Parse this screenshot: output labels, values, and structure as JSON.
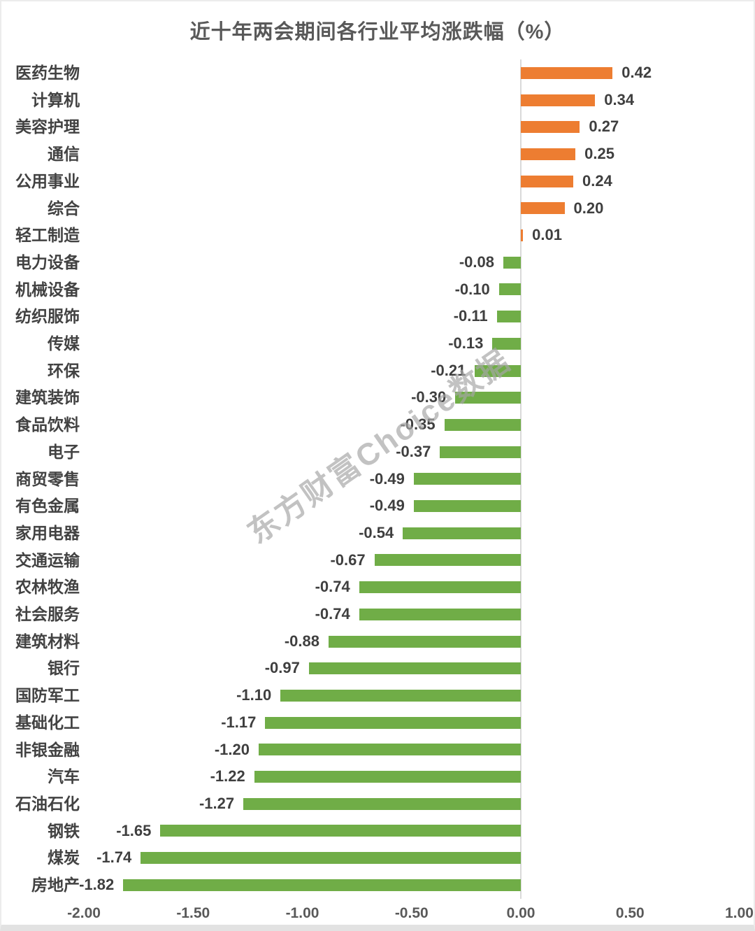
{
  "page": {
    "background_color": "#FFFFFF",
    "frame_color": "#E2E2E2"
  },
  "chart_data": {
    "type": "bar",
    "orientation": "horizontal",
    "title": "近十年两会期间各行业平均涨跌幅（%）",
    "categories": [
      "医药生物",
      "计算机",
      "美容护理",
      "通信",
      "公用事业",
      "综合",
      "轻工制造",
      "电力设备",
      "机械设备",
      "纺织服饰",
      "传媒",
      "环保",
      "建筑装饰",
      "食品饮料",
      "电子",
      "商贸零售",
      "有色金属",
      "家用电器",
      "交通运输",
      "农林牧渔",
      "社会服务",
      "建筑材料",
      "银行",
      "国防军工",
      "基础化工",
      "非银金融",
      "汽车",
      "石油石化",
      "钢铁",
      "煤炭",
      "房地产"
    ],
    "values": [
      0.42,
      0.34,
      0.27,
      0.25,
      0.24,
      0.2,
      0.01,
      -0.08,
      -0.1,
      -0.11,
      -0.13,
      -0.21,
      -0.3,
      -0.35,
      -0.37,
      -0.49,
      -0.49,
      -0.54,
      -0.67,
      -0.74,
      -0.74,
      -0.88,
      -0.97,
      -1.1,
      -1.17,
      -1.2,
      -1.22,
      -1.27,
      -1.65,
      -1.74,
      -1.82
    ],
    "value_labels": [
      "0.42",
      "0.34",
      "0.27",
      "0.25",
      "0.24",
      "0.20",
      "0.01",
      "-0.08",
      "-0.10",
      "-0.11",
      "-0.13",
      "-0.21",
      "-0.30",
      "-0.35",
      "-0.37",
      "-0.49",
      "-0.49",
      "-0.54",
      "-0.67",
      "-0.74",
      "-0.74",
      "-0.88",
      "-0.97",
      "-1.10",
      "-1.17",
      "-1.20",
      "-1.22",
      "-1.27",
      "-1.65",
      "-1.74",
      "-1.82"
    ],
    "xticks": [
      -2.0,
      -1.5,
      -1.0,
      -0.5,
      0.0,
      0.5,
      1.0
    ],
    "xtick_labels": [
      "-2.00",
      "-1.50",
      "-1.00",
      "-0.50",
      "0.00",
      "0.50",
      "1.00"
    ],
    "xlim": [
      -2.0,
      1.0
    ],
    "xlabel": "",
    "ylabel": "",
    "grid": false,
    "legend": "none",
    "zero_axis_line_color": "#D9D9D9",
    "bar_colors": {
      "positive": "#ED7D31",
      "negative": "#70AD47"
    },
    "text_colors": {
      "title": "#595959",
      "category_labels": "#424242",
      "value_labels": "#3F3F3F",
      "tick_labels": "#595959"
    }
  },
  "watermark": {
    "text": "东方财富Choice数据",
    "color": "#A6A6A6"
  }
}
